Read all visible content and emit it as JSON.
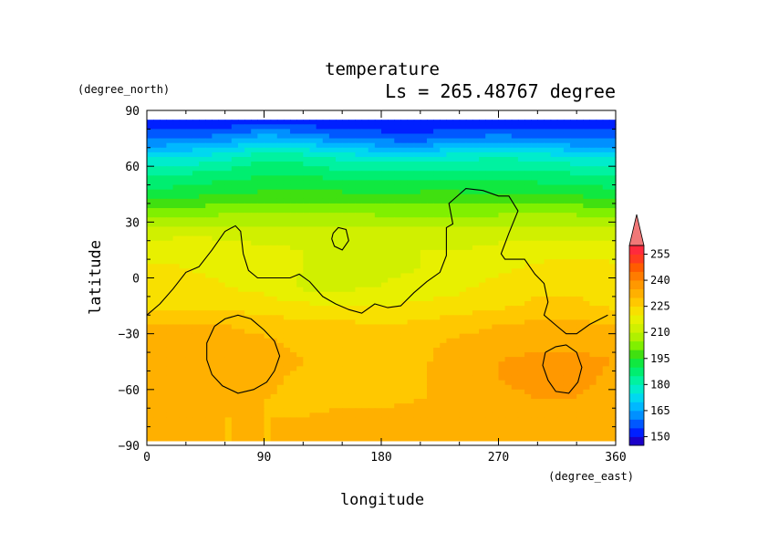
{
  "chart_data": {
    "type": "heatmap",
    "title": "temperature",
    "subtitle": "Ls = 265.48767 degree",
    "xlabel": "longitude",
    "ylabel": "latitude",
    "x_unit": "(degree_east)",
    "y_unit": "(degree_north)",
    "xlim": [
      0,
      360
    ],
    "ylim": [
      -90,
      90
    ],
    "x_ticks": [
      "0",
      "90",
      "180",
      "270",
      "360"
    ],
    "y_ticks": [
      "90",
      "60",
      "30",
      "0",
      "−30",
      "−60",
      "−90"
    ],
    "colorbar": {
      "ticks": [
        "255",
        "240",
        "225",
        "210",
        "195",
        "180",
        "165",
        "150"
      ],
      "levels": [
        145,
        150,
        155,
        160,
        165,
        170,
        175,
        180,
        185,
        190,
        195,
        200,
        205,
        210,
        215,
        220,
        225,
        230,
        235,
        240,
        245,
        250,
        255,
        260
      ],
      "colors": [
        "#1a00c8",
        "#0020ff",
        "#0058ff",
        "#0090ff",
        "#00b8ff",
        "#00d8f0",
        "#00eccc",
        "#00f2a0",
        "#00ee70",
        "#10e840",
        "#40e010",
        "#80f000",
        "#b0f000",
        "#d0f000",
        "#e8f000",
        "#f8e000",
        "#ffc800",
        "#ffb000",
        "#ff9800",
        "#ff7c00",
        "#ff5c00",
        "#ff3c1e",
        "#ff2a3c",
        "#f07878"
      ],
      "extend": "max"
    },
    "lat": [
      85,
      75,
      65,
      55,
      45,
      35,
      25,
      15,
      5,
      -5,
      -15,
      -25,
      -35,
      -45,
      -55,
      -65,
      -75,
      -85
    ],
    "lon": [
      0,
      30,
      60,
      90,
      120,
      150,
      180,
      210,
      240,
      270,
      300,
      330,
      360
    ],
    "temps": [
      [
        150,
        150,
        150,
        150,
        150,
        150,
        150,
        150,
        150,
        150,
        150,
        150,
        150
      ],
      [
        158,
        160,
        162,
        168,
        165,
        160,
        158,
        157,
        160,
        162,
        160,
        158,
        158
      ],
      [
        175,
        175,
        178,
        184,
        182,
        178,
        176,
        176,
        178,
        180,
        178,
        176,
        175
      ],
      [
        185,
        186,
        188,
        190,
        190,
        188,
        187,
        188,
        188,
        188,
        187,
        186,
        185
      ],
      [
        192,
        193,
        195,
        196,
        196,
        196,
        196,
        196,
        196,
        195,
        195,
        194,
        192
      ],
      [
        202,
        203,
        204,
        204,
        205,
        205,
        204,
        204,
        204,
        204,
        204,
        204,
        202
      ],
      [
        212,
        213,
        213,
        212,
        213,
        212,
        211,
        212,
        211,
        212,
        213,
        213,
        212
      ],
      [
        218,
        219,
        218,
        216,
        215,
        214,
        214,
        215,
        215,
        217,
        218,
        218,
        218
      ],
      [
        221,
        220,
        219,
        218,
        215,
        214,
        214,
        215,
        216,
        219,
        221,
        222,
        221
      ],
      [
        222,
        222,
        220,
        219,
        214,
        214,
        215,
        217,
        219,
        222,
        224,
        224,
        222
      ],
      [
        224,
        224,
        223,
        222,
        221,
        220,
        220,
        221,
        222,
        224,
        226,
        226,
        224
      ],
      [
        230,
        230,
        230,
        228,
        226,
        226,
        225,
        226,
        228,
        230,
        231,
        231,
        230
      ],
      [
        234,
        234,
        233,
        231,
        229,
        228,
        228,
        229,
        231,
        233,
        234,
        234,
        234
      ],
      [
        235,
        234,
        234,
        232,
        230,
        228,
        228,
        229,
        233,
        235,
        236,
        236,
        235
      ],
      [
        234,
        233,
        233,
        231,
        229,
        228,
        228,
        229,
        233,
        235,
        236,
        236,
        234
      ],
      [
        233,
        231,
        231,
        230,
        229,
        229,
        229,
        230,
        231,
        234,
        235,
        235,
        233
      ],
      [
        234,
        231,
        230,
        230,
        230,
        231,
        231,
        231,
        232,
        235,
        234,
        234,
        234
      ],
      [
        234,
        231,
        230,
        230,
        230,
        231,
        231,
        231,
        232,
        235,
        234,
        234,
        234
      ]
    ],
    "contours": [
      [
        [
          0,
          -20
        ],
        [
          10,
          -14
        ],
        [
          20,
          -6
        ],
        [
          30,
          3
        ],
        [
          40,
          6
        ],
        [
          50,
          15
        ],
        [
          60,
          25
        ],
        [
          68,
          28
        ],
        [
          72,
          25
        ],
        [
          74,
          13
        ],
        [
          78,
          4
        ],
        [
          85,
          0
        ],
        [
          100,
          0
        ],
        [
          110,
          0
        ],
        [
          117,
          2
        ],
        [
          125,
          -2
        ],
        [
          135,
          -10
        ],
        [
          145,
          -14
        ],
        [
          155,
          -17
        ],
        [
          165,
          -19
        ],
        [
          175,
          -14
        ],
        [
          185,
          -16
        ],
        [
          195,
          -15
        ],
        [
          205,
          -8
        ],
        [
          215,
          -2
        ],
        [
          225,
          3
        ],
        [
          230,
          12
        ],
        [
          230,
          27
        ],
        [
          235,
          29
        ],
        [
          232,
          40
        ],
        [
          245,
          48
        ],
        [
          258,
          47
        ],
        [
          270,
          44
        ],
        [
          278,
          44
        ],
        [
          285,
          36
        ],
        [
          278,
          24
        ],
        [
          272,
          13
        ],
        [
          275,
          10
        ],
        [
          290,
          10
        ],
        [
          298,
          2
        ],
        [
          305,
          -3
        ],
        [
          308,
          -13
        ],
        [
          305,
          -20
        ],
        [
          315,
          -26
        ],
        [
          322,
          -30
        ],
        [
          330,
          -30
        ],
        [
          340,
          -25
        ],
        [
          354,
          -20
        ]
      ],
      [
        [
          52,
          -26
        ],
        [
          60,
          -22
        ],
        [
          70,
          -20
        ],
        [
          80,
          -22
        ],
        [
          90,
          -28
        ],
        [
          98,
          -34
        ],
        [
          102,
          -42
        ],
        [
          98,
          -50
        ],
        [
          92,
          -56
        ],
        [
          82,
          -60
        ],
        [
          70,
          -62
        ],
        [
          58,
          -58
        ],
        [
          50,
          -52
        ],
        [
          46,
          -44
        ],
        [
          46,
          -35
        ],
        [
          52,
          -26
        ]
      ],
      [
        [
          306,
          -40
        ],
        [
          314,
          -37
        ],
        [
          322,
          -36
        ],
        [
          330,
          -40
        ],
        [
          334,
          -48
        ],
        [
          331,
          -56
        ],
        [
          324,
          -62
        ],
        [
          314,
          -61
        ],
        [
          308,
          -55
        ],
        [
          304,
          -47
        ],
        [
          306,
          -40
        ]
      ],
      [
        [
          143,
          24
        ],
        [
          147,
          27
        ],
        [
          153,
          26
        ],
        [
          155,
          20
        ],
        [
          150,
          15
        ],
        [
          144,
          17
        ],
        [
          142,
          21
        ],
        [
          143,
          24
        ]
      ]
    ]
  }
}
